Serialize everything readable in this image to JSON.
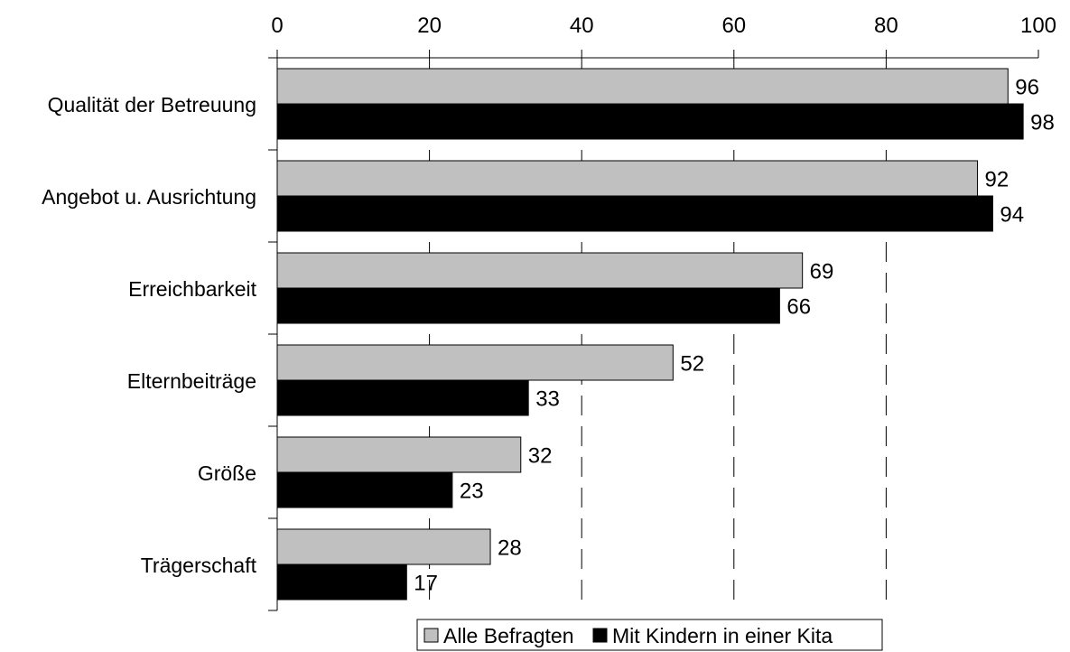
{
  "chart_data": {
    "type": "bar",
    "orientation": "horizontal",
    "categories": [
      "Qualität der Betreuung",
      "Angebot u. Ausrichtung",
      "Erreichbarkeit",
      "Elternbeiträge",
      "Größe",
      "Trägerschaft"
    ],
    "series": [
      {
        "name": "Alle Befragten",
        "values": [
          96,
          92,
          69,
          52,
          32,
          28
        ],
        "color": "#c0c0c0"
      },
      {
        "name": "Mit Kindern in einer Kita",
        "values": [
          98,
          94,
          66,
          33,
          23,
          17
        ],
        "color": "#000000"
      }
    ],
    "x_ticks": [
      0,
      20,
      40,
      60,
      80,
      100
    ],
    "xlim": [
      0,
      100
    ],
    "x_axis_position": "top",
    "grid": "vertical-dashed",
    "legend_position": "bottom-center",
    "title": "",
    "xlabel": "",
    "ylabel": ""
  }
}
